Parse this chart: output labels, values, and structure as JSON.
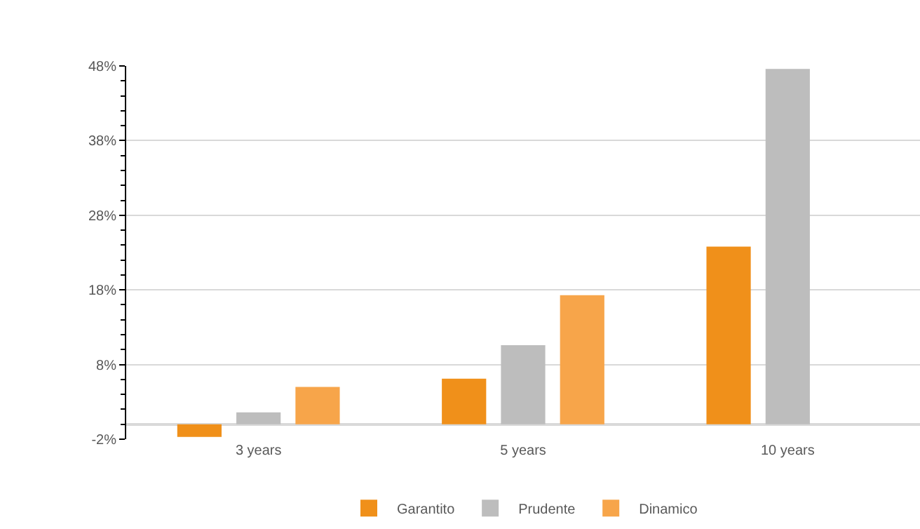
{
  "chart_data": {
    "type": "bar",
    "categories": [
      "3 years",
      "5 years",
      "10 years"
    ],
    "series": [
      {
        "name": "Garantito",
        "color": "#f0901a",
        "values": [
          -1.7,
          6.1,
          23.8
        ]
      },
      {
        "name": "Prudente",
        "color": "#bdbdbd",
        "values": [
          1.6,
          10.6,
          47.6
        ]
      },
      {
        "name": "Dinamico",
        "color": "#f7a54a",
        "values": [
          5.0,
          17.3,
          null
        ]
      }
    ],
    "ylim": [
      -2,
      48
    ],
    "yticks": [
      {
        "value": -2,
        "label": "-2%"
      },
      {
        "value": 8,
        "label": "8%"
      },
      {
        "value": 18,
        "label": "18%"
      },
      {
        "value": 28,
        "label": "28%"
      },
      {
        "value": 38,
        "label": "38%"
      },
      {
        "value": 48,
        "label": "48%"
      }
    ],
    "grid": "y",
    "legend": "bottom"
  }
}
